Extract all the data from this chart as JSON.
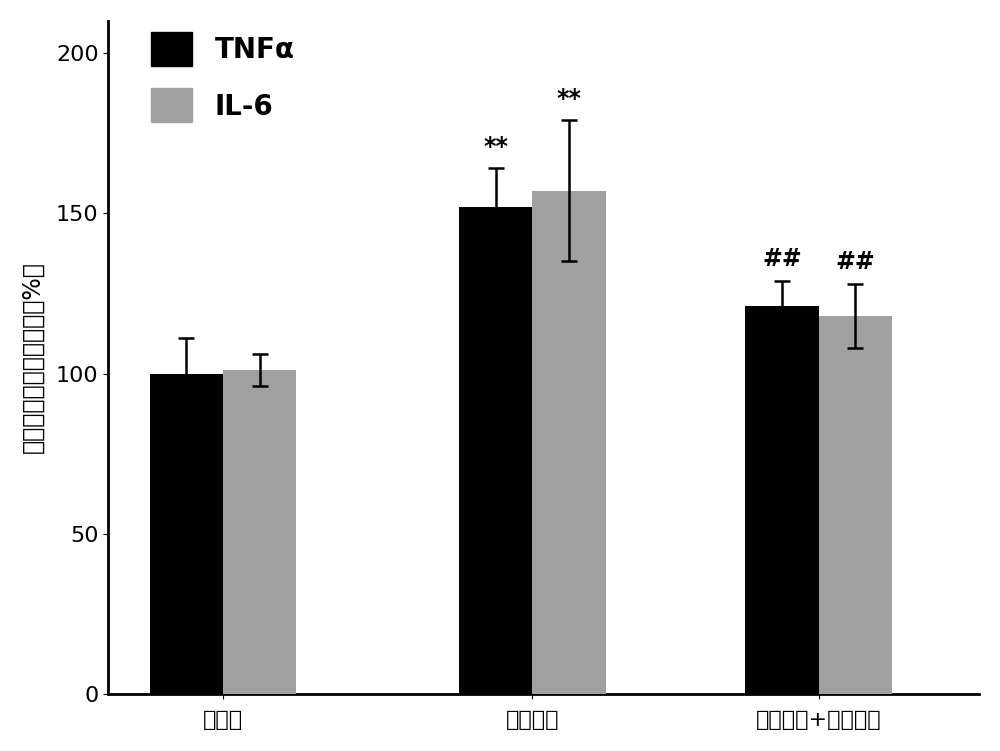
{
  "groups": [
    "对照组",
    "高原低氧",
    "高原低氧+骨化三醇"
  ],
  "tnf_values": [
    100,
    152,
    121
  ],
  "tnf_errors": [
    11,
    12,
    8
  ],
  "il6_values": [
    101,
    157,
    118
  ],
  "il6_errors": [
    5,
    22,
    10
  ],
  "tnf_color": "#000000",
  "il6_color": "#a0a0a0",
  "bar_width": 0.32,
  "ylim": [
    0,
    210
  ],
  "yticks": [
    0,
    50,
    100,
    150,
    200
  ],
  "ylabel": "血清促炎因子相对水平（%）",
  "legend_labels": [
    "TNFα",
    "IL-6"
  ],
  "annotations_tnf": [
    "",
    "**",
    "##"
  ],
  "annotations_il6": [
    "",
    "**",
    "##"
  ],
  "background_color": "#ffffff",
  "label_fontsize": 17,
  "tick_fontsize": 16,
  "legend_fontsize": 20,
  "annotation_fontsize": 17,
  "x_positions": [
    0.5,
    1.85,
    3.1
  ]
}
